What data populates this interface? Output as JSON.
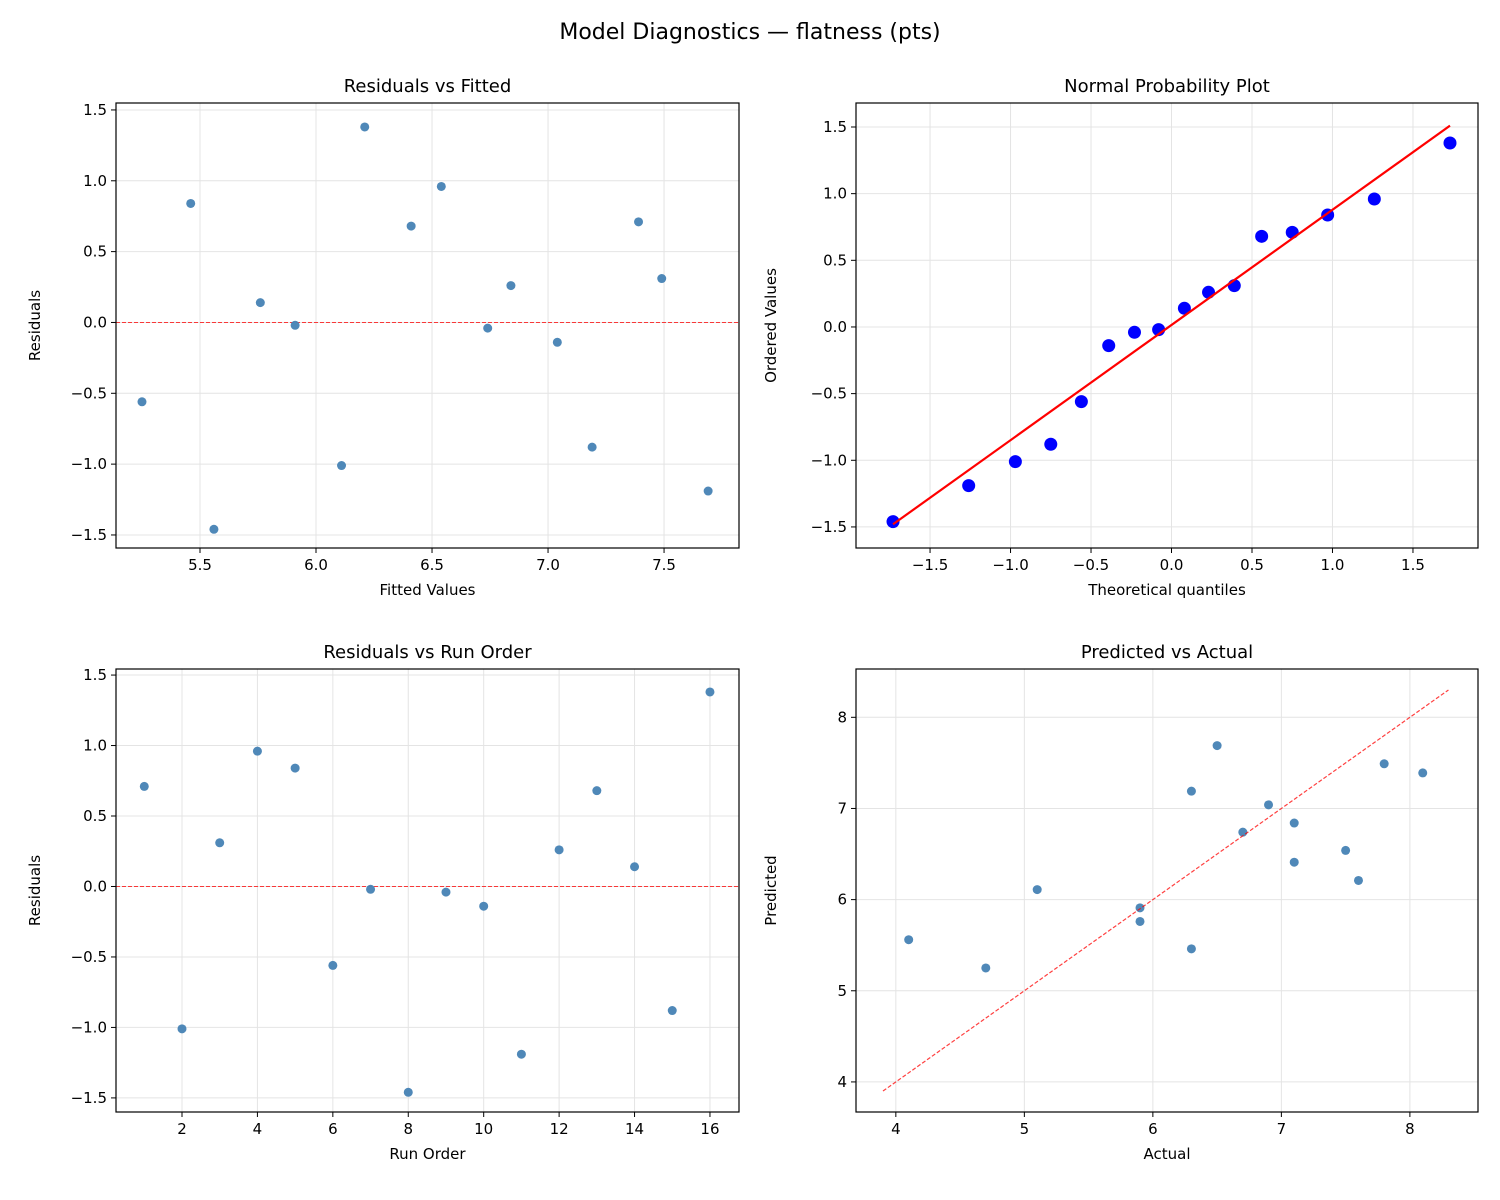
{
  "figure_title": "Model Diagnostics — flatness (pts)",
  "chart_data": [
    {
      "type": "scatter",
      "title": "Residuals vs Fitted",
      "xlabel": "Fitted Values",
      "ylabel": "Residuals",
      "xlim": [
        5.138,
        7.823
      ],
      "ylim": [
        -1.592,
        1.549
      ],
      "xticks": [
        5.5,
        6.0,
        6.5,
        7.0,
        7.5
      ],
      "yticks": [
        -1.5,
        -1.0,
        -0.5,
        0.0,
        0.5,
        1.0,
        1.5
      ],
      "tickfmt": 1,
      "x": [
        5.25,
        5.46,
        5.56,
        5.76,
        5.91,
        6.11,
        6.21,
        6.41,
        6.54,
        6.74,
        6.84,
        7.04,
        7.19,
        7.39,
        7.49,
        7.69
      ],
      "y": [
        -0.56,
        0.84,
        -1.46,
        0.14,
        -0.02,
        -1.01,
        1.38,
        0.68,
        0.96,
        -0.04,
        0.26,
        -0.14,
        -0.88,
        0.71,
        0.31,
        -1.19
      ],
      "point_color": "#4682b4",
      "reference_line": {
        "type": "hline",
        "y": 0,
        "color": "#ff0000",
        "style": "dashed"
      },
      "grid": true
    },
    {
      "type": "scatter",
      "title": "Normal Probability Plot",
      "xlabel": "Theoretical quantiles",
      "ylabel": "Ordered Values",
      "xlim": [
        -1.96,
        1.904
      ],
      "ylim": [
        -1.658,
        1.68
      ],
      "xticks": [
        -1.5,
        -1.0,
        -0.5,
        0.0,
        0.5,
        1.0,
        1.5
      ],
      "yticks": [
        -1.5,
        -1.0,
        -0.5,
        0.0,
        0.5,
        1.0,
        1.5
      ],
      "tickfmt": 1,
      "x": [
        -1.73,
        -1.26,
        -0.97,
        -0.75,
        -0.56,
        -0.39,
        -0.23,
        -0.08,
        0.08,
        0.23,
        0.39,
        0.56,
        0.75,
        0.97,
        1.26,
        1.73
      ],
      "y": [
        -1.46,
        -1.19,
        -1.01,
        -0.88,
        -0.56,
        -0.14,
        -0.04,
        -0.02,
        0.14,
        0.26,
        0.31,
        0.68,
        0.71,
        0.84,
        0.96,
        1.38
      ],
      "point_color": "#0000ff",
      "reference_line": {
        "type": "segment",
        "x": [
          -1.73,
          1.73
        ],
        "y": [
          -1.48,
          1.51
        ],
        "color": "#ff0000",
        "style": "solid"
      },
      "grid": true
    },
    {
      "type": "scatter",
      "title": "Residuals vs Run Order",
      "xlabel": "Run Order",
      "ylabel": "Residuals",
      "xlim": [
        0.25,
        16.77
      ],
      "ylim": [
        -1.6,
        1.543
      ],
      "xticks": [
        2,
        4,
        6,
        8,
        10,
        12,
        14,
        16
      ],
      "yticks": [
        -1.5,
        -1.0,
        -0.5,
        0.0,
        0.5,
        1.0,
        1.5
      ],
      "tickfmt": 0,
      "x": [
        1,
        2,
        3,
        4,
        5,
        6,
        7,
        8,
        9,
        10,
        11,
        12,
        13,
        14,
        15,
        16
      ],
      "y": [
        0.71,
        -1.01,
        0.31,
        0.96,
        0.84,
        -0.56,
        -0.02,
        -1.46,
        -0.04,
        -0.14,
        -1.19,
        0.26,
        0.68,
        0.14,
        -0.88,
        1.38
      ],
      "point_color": "#4682b4",
      "reference_line": {
        "type": "hline",
        "y": 0,
        "color": "#ff0000",
        "style": "dashed"
      },
      "grid": true
    },
    {
      "type": "scatter",
      "title": "Predicted vs Actual",
      "xlabel": "Actual",
      "ylabel": "Predicted",
      "xlim": [
        3.69,
        8.53
      ],
      "ylim": [
        3.67,
        8.53
      ],
      "xticks": [
        4,
        5,
        6,
        7,
        8
      ],
      "yticks": [
        4,
        5,
        6,
        7,
        8
      ],
      "tickfmt": 0,
      "x": [
        4.7,
        6.3,
        4.1,
        5.9,
        5.9,
        5.1,
        7.6,
        7.1,
        7.5,
        6.7,
        7.1,
        6.9,
        6.3,
        8.1,
        7.8,
        6.5
      ],
      "y": [
        5.25,
        5.46,
        5.56,
        5.76,
        5.91,
        6.11,
        6.21,
        6.41,
        6.54,
        6.74,
        6.84,
        7.04,
        7.19,
        7.39,
        7.49,
        7.69
      ],
      "point_color": "#4682b4",
      "reference_line": {
        "type": "segment",
        "x": [
          3.9,
          8.3
        ],
        "y": [
          3.9,
          8.3
        ],
        "color": "#ff0000",
        "style": "dashed"
      },
      "grid": true
    }
  ]
}
